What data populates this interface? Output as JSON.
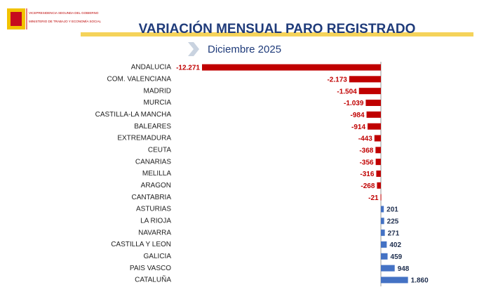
{
  "header": {
    "logo_lines": [
      "VICEPRESIDENCIA SEGUNDA DEL GOBIERNO",
      "MINISTERIO DE TRABAJO Y ECONOMÍA SOCIAL"
    ]
  },
  "chart_data": {
    "type": "bar",
    "orientation": "horizontal",
    "title": "VARIACIÓN MENSUAL PARO REGISTRADO",
    "subtitle": "Diciembre 2025",
    "categories": [
      "ANDALUCIA",
      "COM. VALENCIANA",
      "MADRID",
      "MURCIA",
      "CASTILLA-LA MANCHA",
      "BALEARES",
      "EXTREMADURA",
      "CEUTA",
      "CANARIAS",
      "MELILLA",
      "ARAGON",
      "CANTABRIA",
      "ASTURIAS",
      "LA RIOJA",
      "NAVARRA",
      "CASTILLA Y LEON",
      "GALICIA",
      "PAIS VASCO",
      "CATALUÑA"
    ],
    "values": [
      -12271,
      -2173,
      -1504,
      -1039,
      -984,
      -914,
      -443,
      -368,
      -356,
      -316,
      -268,
      -21,
      201,
      225,
      271,
      402,
      459,
      948,
      1860
    ],
    "value_labels": [
      "-12.271",
      "-2.173",
      "-1.504",
      "-1.039",
      "-984",
      "-914",
      "-443",
      "-368",
      "-356",
      "-316",
      "-268",
      "-21",
      "201",
      "225",
      "271",
      "402",
      "459",
      "948",
      "1.860"
    ],
    "negative_color": "#c00000",
    "positive_color": "#4472c4"
  }
}
